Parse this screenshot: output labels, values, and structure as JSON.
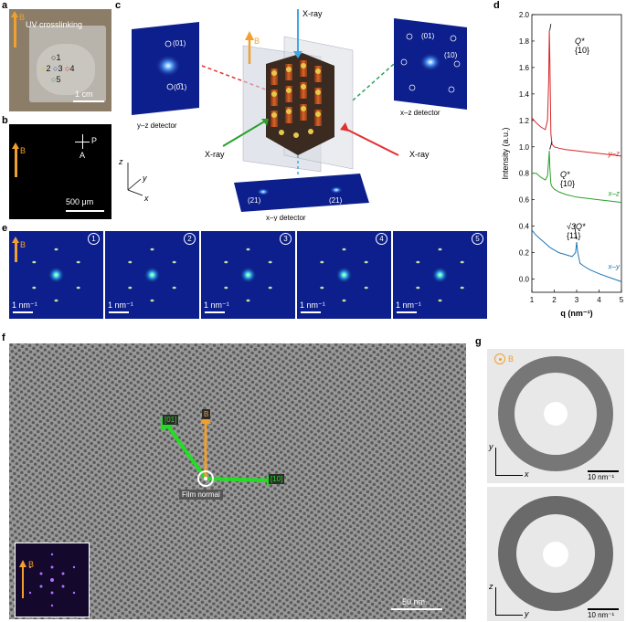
{
  "panels": {
    "a": {
      "letter": "a",
      "field_label": "B",
      "title": "UV crosslinking",
      "spots": [
        "1",
        "2",
        "3",
        "4",
        "5"
      ],
      "scale": "1 cm"
    },
    "b": {
      "letter": "b",
      "field_label": "B",
      "polarizer": "P",
      "analyzer": "A",
      "scale": "500 μm"
    },
    "c": {
      "letter": "c",
      "field_label": "B",
      "xray_top": "X-ray",
      "xray_left": "X-ray",
      "xray_right": "X-ray",
      "det_yz": "y–z detector",
      "det_xz": "x–z detector",
      "det_xy": "x–y detector",
      "yz_p1": "(01)",
      "yz_p2": "(0̅1)",
      "xz_p1": "(01)",
      "xz_p2": "(10)",
      "xy_p1": "(21)",
      "xy_p2": "(21)",
      "axis_z": "z",
      "axis_y": "y",
      "axis_x": "x"
    },
    "d": {
      "letter": "d",
      "peak_yz": "Q*",
      "peak_yz_idx": "{10}",
      "peak_xz": "Q*",
      "peak_xz_idx": "{10}",
      "peak_xy": "√3Q*",
      "peak_xy_idx": "{11}"
    },
    "e": {
      "letter": "e",
      "field_label": "B",
      "frames": [
        "1",
        "2",
        "3",
        "4",
        "5"
      ],
      "scale": "1 nm⁻¹"
    },
    "f": {
      "letter": "f",
      "label_01": "[01]",
      "label_10": "[10]",
      "label_B": "B",
      "film_normal": "Film normal",
      "inset_B": "B",
      "scale": "50 nm"
    },
    "g": {
      "letter": "g",
      "field_label": "B",
      "top_y": "y",
      "top_x": "x",
      "top_scale": "10 nm⁻¹",
      "bot_z": "z",
      "bot_y": "y",
      "bot_scale": "10 nm⁻¹"
    }
  },
  "chart_data": {
    "type": "line",
    "xlabel": "q (nm⁻¹)",
    "ylabel": "Intensity (a.u.)",
    "xlim": [
      1,
      5
    ],
    "ylim": [
      -0.1,
      2.0
    ],
    "xticks": [
      1,
      2,
      3,
      4,
      5
    ],
    "yticks": [
      0.0,
      0.2,
      0.4,
      0.6,
      0.8,
      1.0,
      1.2,
      1.4,
      1.6,
      1.8,
      2.0
    ],
    "ytick_labels": [
      "0.0",
      "0.2",
      "0.4",
      "0.6",
      "0.8",
      "1.0",
      "1.2",
      "1.4",
      "1.6",
      "1.8",
      "2.0"
    ],
    "legend_placement": "inline-right",
    "series": [
      {
        "name": "y–z",
        "color": "#d62728",
        "x": [
          1.0,
          1.2,
          1.4,
          1.6,
          1.7,
          1.75,
          1.78,
          1.8,
          1.85,
          1.9,
          2.0,
          2.2,
          2.5,
          3.0,
          3.5,
          4.0,
          4.5,
          5.0
        ],
        "y": [
          1.22,
          1.18,
          1.15,
          1.13,
          1.2,
          1.5,
          1.88,
          1.7,
          1.1,
          1.02,
          1.0,
          0.99,
          0.98,
          0.97,
          0.96,
          0.95,
          0.94,
          0.93
        ]
      },
      {
        "name": "x–z",
        "color": "#2ca02c",
        "x": [
          1.0,
          1.2,
          1.4,
          1.6,
          1.7,
          1.75,
          1.78,
          1.8,
          1.85,
          1.9,
          2.0,
          2.2,
          2.5,
          3.0,
          3.5,
          4.0,
          4.5,
          5.0
        ],
        "y": [
          0.8,
          0.8,
          0.77,
          0.75,
          0.78,
          0.9,
          0.97,
          0.85,
          0.72,
          0.7,
          0.68,
          0.66,
          0.64,
          0.62,
          0.61,
          0.6,
          0.59,
          0.58
        ]
      },
      {
        "name": "x–y",
        "color": "#1f77b4",
        "x": [
          1.0,
          1.2,
          1.4,
          1.6,
          1.8,
          2.0,
          2.2,
          2.4,
          2.6,
          2.8,
          2.95,
          3.0,
          3.05,
          3.15,
          3.3,
          3.6,
          4.0,
          4.5,
          5.0
        ],
        "y": [
          0.37,
          0.33,
          0.3,
          0.27,
          0.24,
          0.22,
          0.2,
          0.19,
          0.18,
          0.17,
          0.2,
          0.28,
          0.2,
          0.12,
          0.1,
          0.07,
          0.04,
          0.01,
          -0.02
        ]
      }
    ]
  }
}
